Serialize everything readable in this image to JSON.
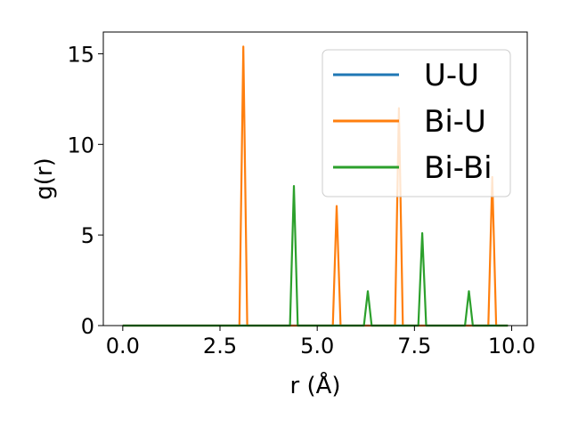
{
  "chart_data": {
    "type": "line",
    "title": "",
    "xlabel": "r (Å)",
    "ylabel": "g(r)",
    "xlim": [
      -0.5,
      10.4
    ],
    "ylim": [
      0,
      16.2
    ],
    "xticks": [
      0.0,
      2.5,
      5.0,
      7.5,
      10.0
    ],
    "xtick_labels": [
      "0.0",
      "2.5",
      "5.0",
      "7.5",
      "10.0"
    ],
    "yticks": [
      0,
      5,
      10,
      15
    ],
    "ytick_labels": [
      "0",
      "5",
      "10",
      "15"
    ],
    "grid": false,
    "legend_position": "top-right",
    "series": [
      {
        "name": "U-U",
        "color": "#1f77b4",
        "points": [
          [
            0.0,
            0
          ],
          [
            9.9,
            0
          ]
        ]
      },
      {
        "name": "Bi-U",
        "color": "#ff7f0e",
        "points": [
          [
            0.0,
            0
          ],
          [
            3.0,
            0
          ],
          [
            3.1,
            15.4
          ],
          [
            3.2,
            0
          ],
          [
            5.4,
            0
          ],
          [
            5.5,
            6.6
          ],
          [
            5.6,
            0
          ],
          [
            7.0,
            0
          ],
          [
            7.1,
            12.0
          ],
          [
            7.2,
            0
          ],
          [
            9.4,
            0
          ],
          [
            9.5,
            8.2
          ],
          [
            9.6,
            0
          ],
          [
            9.9,
            0
          ]
        ]
      },
      {
        "name": "Bi-Bi",
        "color": "#2ca02c",
        "points": [
          [
            0.0,
            0
          ],
          [
            4.3,
            0
          ],
          [
            4.4,
            7.7
          ],
          [
            4.5,
            0
          ],
          [
            6.2,
            0
          ],
          [
            6.3,
            1.9
          ],
          [
            6.4,
            0
          ],
          [
            7.6,
            0
          ],
          [
            7.7,
            5.1
          ],
          [
            7.8,
            0
          ],
          [
            8.8,
            0
          ],
          [
            8.9,
            1.9
          ],
          [
            9.0,
            0
          ],
          [
            9.9,
            0
          ]
        ]
      }
    ]
  }
}
